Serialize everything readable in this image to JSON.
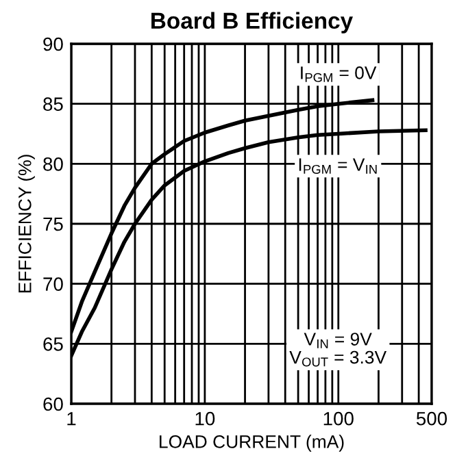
{
  "chart_data": {
    "type": "line",
    "title": "Board B Efficiency",
    "xlabel": "LOAD CURRENT (mA)",
    "ylabel": "EFFICIENCY (%)",
    "log": "x",
    "grid": true,
    "marker": "none",
    "line_style": "solid",
    "xlim": [
      1,
      500
    ],
    "ylim": [
      60,
      90
    ],
    "xticks": [
      1,
      {
        "value": 2,
        "label": null
      },
      {
        "value": 3,
        "label": null
      },
      {
        "value": 4,
        "label": null
      },
      {
        "value": 5,
        "label": null
      },
      {
        "value": 6,
        "label": null
      },
      {
        "value": 7,
        "label": null
      },
      {
        "value": 8,
        "label": null
      },
      {
        "value": 9,
        "label": null
      },
      10,
      {
        "value": 20,
        "label": null
      },
      {
        "value": 30,
        "label": null
      },
      {
        "value": 40,
        "label": null
      },
      {
        "value": 50,
        "label": null
      },
      {
        "value": 60,
        "label": null
      },
      {
        "value": 70,
        "label": null
      },
      {
        "value": 80,
        "label": null
      },
      {
        "value": 90,
        "label": null
      },
      100,
      {
        "value": 200,
        "label": null
      },
      {
        "value": 300,
        "label": null
      },
      {
        "value": 400,
        "label": null
      },
      500
    ],
    "yticks": [
      60,
      65,
      70,
      75,
      80,
      85,
      90
    ],
    "series": [
      {
        "color": "#000000",
        "x": [
          1,
          1.2,
          1.5,
          2,
          2.5,
          3,
          4,
          5,
          6,
          7,
          10,
          15,
          20,
          30,
          50,
          70,
          100,
          180
        ],
        "values": [
          66,
          68.5,
          71,
          74.2,
          76.5,
          78,
          80,
          80.8,
          81.4,
          81.9,
          82.6,
          83.2,
          83.6,
          84,
          84.5,
          84.8,
          85,
          85.3
        ]
      },
      {
        "color": "#000000",
        "x": [
          1,
          1.2,
          1.5,
          2,
          2.5,
          3,
          4,
          5,
          7,
          10,
          15,
          20,
          30,
          50,
          70,
          100,
          200,
          450
        ],
        "values": [
          64,
          66,
          68,
          71.2,
          73.5,
          75,
          77,
          78.2,
          79.4,
          80.2,
          80.9,
          81.3,
          81.8,
          82.2,
          82.4,
          82.5,
          82.7,
          82.8
        ]
      }
    ],
    "annotations": [
      "I$_{PGM}$ = 0V",
      "I$_{PGM}$ = V$_{IN}$",
      "V$_{IN}$ = 9V\nV$_{OUT}$ = 3.3V"
    ]
  }
}
